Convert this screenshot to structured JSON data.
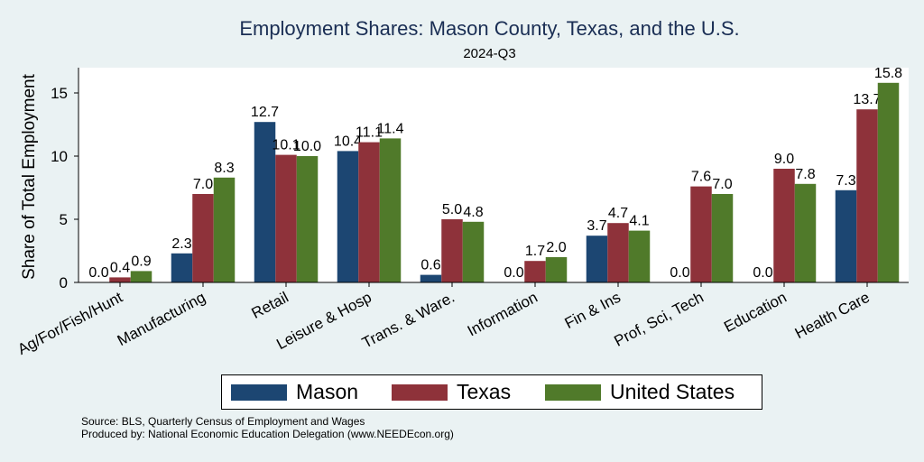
{
  "chart_data": {
    "type": "bar",
    "title": "Employment Shares: Mason County, Texas, and the U.S.",
    "subtitle": "2024-Q3",
    "ylabel": "Share of Total Employment",
    "xlabel": "",
    "ylim": [
      0,
      17
    ],
    "yticks": [
      0,
      5,
      10,
      15
    ],
    "grid": false,
    "legend_position": "bottom",
    "categories": [
      "Ag/For/Fish/Hunt",
      "Manufacturing",
      "Retail",
      "Leisure & Hosp",
      "Trans. & Ware.",
      "Information",
      "Fin & Ins",
      "Prof, Sci, Tech",
      "Education",
      "Health Care"
    ],
    "series": [
      {
        "name": "Mason",
        "color": "#1c4672",
        "values": [
          0.0,
          2.3,
          12.7,
          10.4,
          0.6,
          0.0,
          3.7,
          0.0,
          0.0,
          7.3
        ]
      },
      {
        "name": "Texas",
        "color": "#8e323a",
        "values": [
          0.4,
          7.0,
          10.1,
          11.1,
          5.0,
          1.7,
          4.7,
          7.6,
          9.0,
          13.7
        ]
      },
      {
        "name": "United States",
        "color": "#507a2a",
        "values": [
          0.9,
          8.3,
          10.0,
          11.4,
          4.8,
          2.0,
          4.1,
          7.0,
          7.8,
          15.8
        ]
      }
    ]
  },
  "source": {
    "line1": "Source: BLS, Quarterly Census of Employment and Wages",
    "line2": "Produced by: National Economic Education Delegation (www.NEEDEcon.org)"
  }
}
